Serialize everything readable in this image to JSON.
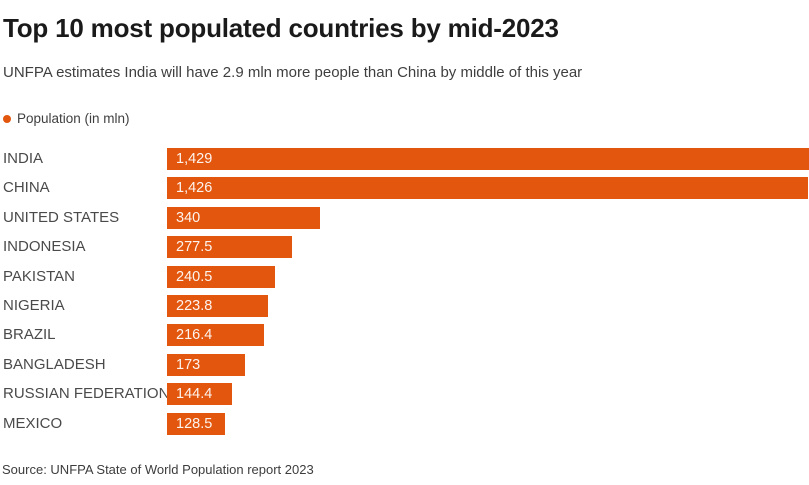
{
  "header": {
    "title": "Top 10 most populated countries by mid-2023",
    "subtitle": "UNFPA estimates India will have 2.9 mln more people than China by middle of this year"
  },
  "legend": {
    "label": "Population (in mln)",
    "dot_color": "#e3560d"
  },
  "chart_data": {
    "type": "bar",
    "orientation": "horizontal",
    "title": "Top 10 most populated countries by mid-2023",
    "series_name": "Population (in mln)",
    "categories": [
      "INDIA",
      "CHINA",
      "UNITED STATES",
      "INDONESIA",
      "PAKISTAN",
      "NIGERIA",
      "BRAZIL",
      "BANGLADESH",
      "RUSSIAN FEDERATION",
      "MEXICO"
    ],
    "values": [
      1429,
      1426,
      340,
      277.5,
      240.5,
      223.8,
      216.4,
      173,
      144.4,
      128.5
    ],
    "value_labels": [
      "1,429",
      "1,426",
      "340",
      "277.5",
      "240.5",
      "223.8",
      "216.4",
      "173",
      "144.4",
      "128.5"
    ],
    "xlim": [
      0,
      1429
    ],
    "grid": false,
    "bar_color": "#e3560d",
    "value_label_position": "inside-left",
    "legend_position": "top-left"
  },
  "footer": {
    "source": "Source: UNFPA State of World Population report 2023"
  },
  "colors": {
    "bar": "#e3560d",
    "title": "#1a1a1a",
    "text": "#3f3f3f",
    "category_label": "#4a4a4a",
    "value_label": "#ffffff",
    "background": "#ffffff"
  }
}
